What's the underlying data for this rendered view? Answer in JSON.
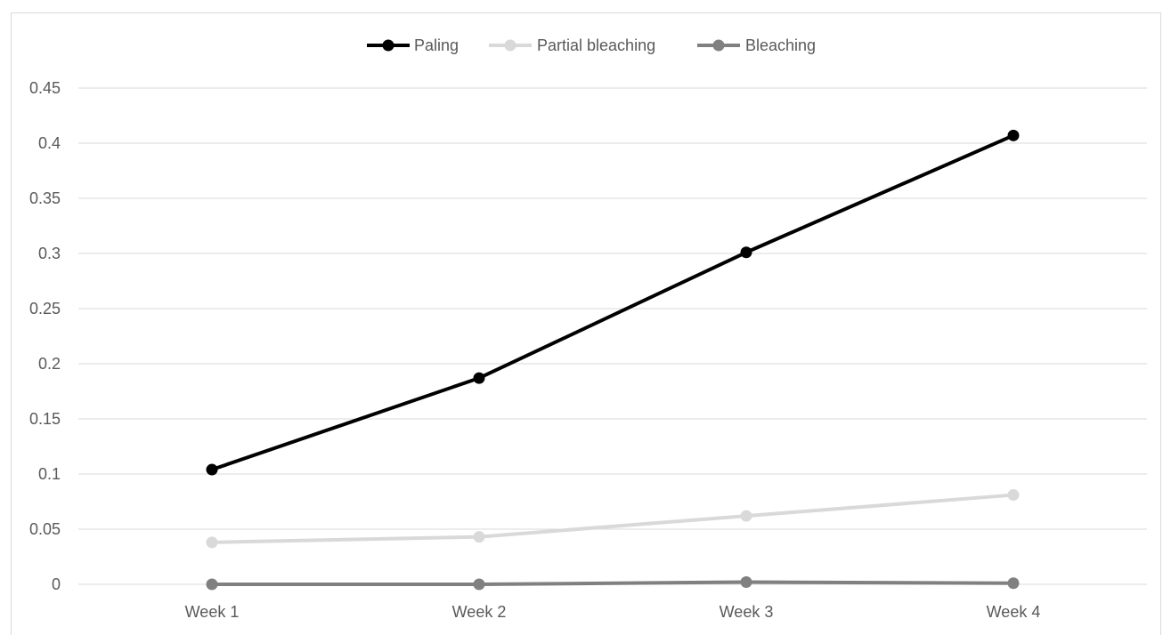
{
  "chart_data": {
    "type": "line",
    "categories": [
      "Week 1",
      "Week 2",
      "Week 3",
      "Week 4"
    ],
    "ylim": [
      0,
      0.45
    ],
    "yticks": [
      "0",
      "0.05",
      "0.1",
      "0.15",
      "0.2",
      "0.25",
      "0.3",
      "0.35",
      "0.4",
      "0.45"
    ],
    "grid": true,
    "legend_position": "top",
    "title": "",
    "xlabel": "",
    "ylabel": "",
    "series": [
      {
        "name": "Paling",
        "color": "#000000",
        "values": [
          0.104,
          0.187,
          0.301,
          0.407
        ]
      },
      {
        "name": "Partial bleaching",
        "color": "#d9d9d9",
        "values": [
          0.038,
          0.043,
          0.062,
          0.081
        ]
      },
      {
        "name": "Bleaching",
        "color": "#808080",
        "values": [
          0.0,
          0.0,
          0.002,
          0.001
        ]
      }
    ]
  }
}
